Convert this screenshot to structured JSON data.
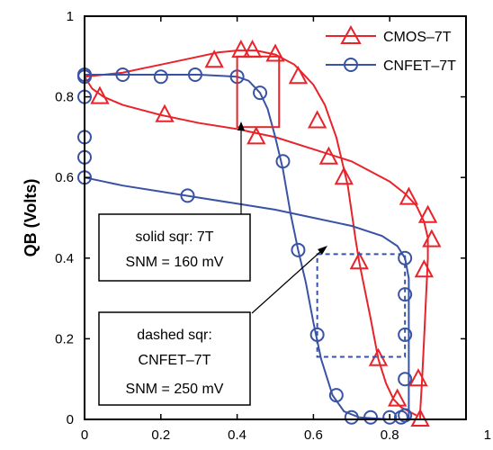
{
  "chart_data": {
    "type": "line",
    "title": "",
    "xlabel": "",
    "ylabel": "QB (Volts)",
    "xlim": [
      0,
      1
    ],
    "ylim": [
      0,
      1
    ],
    "x_ticks": [
      "0",
      "0.2",
      "0.4",
      "0.6",
      "0.8",
      "1"
    ],
    "y_ticks": [
      "0",
      "0.2",
      "0.4",
      "0.6",
      "0.8",
      "1"
    ],
    "grid": false,
    "legend_position": "top-right",
    "series": [
      {
        "name": "CMOS–7T",
        "color": "#e8232a",
        "marker": "triangle",
        "curves": [
          {
            "line": [
              [
                0,
                0.85
              ],
              [
                0.05,
                0.855
              ],
              [
                0.1,
                0.86
              ],
              [
                0.15,
                0.87
              ],
              [
                0.2,
                0.88
              ],
              [
                0.25,
                0.89
              ],
              [
                0.3,
                0.9
              ],
              [
                0.35,
                0.91
              ],
              [
                0.4,
                0.915
              ],
              [
                0.45,
                0.915
              ],
              [
                0.5,
                0.905
              ],
              [
                0.55,
                0.88
              ],
              [
                0.6,
                0.83
              ],
              [
                0.63,
                0.78
              ],
              [
                0.66,
                0.7
              ],
              [
                0.69,
                0.58
              ],
              [
                0.71,
                0.45
              ],
              [
                0.72,
                0.39
              ],
              [
                0.75,
                0.25
              ],
              [
                0.77,
                0.15
              ],
              [
                0.79,
                0.09
              ],
              [
                0.81,
                0.05
              ],
              [
                0.83,
                0.03
              ],
              [
                0.85,
                0.02
              ],
              [
                0.87,
                0.01
              ]
            ],
            "markers": [
              [
                0.34,
                0.89
              ],
              [
                0.41,
                0.915
              ],
              [
                0.44,
                0.915
              ],
              [
                0.5,
                0.905
              ],
              [
                0.56,
                0.85
              ],
              [
                0.61,
                0.74
              ],
              [
                0.68,
                0.6
              ],
              [
                0.72,
                0.39
              ],
              [
                0.77,
                0.15
              ],
              [
                0.82,
                0.05
              ]
            ]
          },
          {
            "line": [
              [
                0,
                0.85
              ],
              [
                0.02,
                0.82
              ],
              [
                0.05,
                0.8
              ],
              [
                0.1,
                0.78
              ],
              [
                0.2,
                0.755
              ],
              [
                0.3,
                0.735
              ],
              [
                0.4,
                0.72
              ],
              [
                0.5,
                0.7
              ],
              [
                0.6,
                0.67
              ],
              [
                0.7,
                0.64
              ],
              [
                0.8,
                0.59
              ],
              [
                0.84,
                0.56
              ],
              [
                0.87,
                0.53
              ],
              [
                0.89,
                0.49
              ],
              [
                0.9,
                0.45
              ],
              [
                0.9,
                0.4
              ],
              [
                0.895,
                0.3
              ],
              [
                0.89,
                0.2
              ],
              [
                0.885,
                0.1
              ],
              [
                0.88,
                0.02
              ],
              [
                0.88,
                0.0
              ]
            ],
            "markers": [
              [
                0.04,
                0.8
              ],
              [
                0.21,
                0.755
              ],
              [
                0.45,
                0.7
              ],
              [
                0.64,
                0.65
              ],
              [
                0.85,
                0.55
              ],
              [
                0.9,
                0.505
              ],
              [
                0.91,
                0.445
              ],
              [
                0.89,
                0.37
              ],
              [
                0.875,
                0.1
              ],
              [
                0.88,
                0.0
              ]
            ]
          }
        ]
      },
      {
        "name": "CNFET–7T",
        "color": "#3953a4",
        "marker": "circle",
        "curves": [
          {
            "line": [
              [
                0,
                0.855
              ],
              [
                0.1,
                0.855
              ],
              [
                0.2,
                0.855
              ],
              [
                0.3,
                0.855
              ],
              [
                0.4,
                0.85
              ],
              [
                0.43,
                0.84
              ],
              [
                0.46,
                0.81
              ],
              [
                0.48,
                0.77
              ],
              [
                0.5,
                0.7
              ],
              [
                0.52,
                0.62
              ],
              [
                0.54,
                0.51
              ],
              [
                0.56,
                0.42
              ],
              [
                0.58,
                0.34
              ],
              [
                0.6,
                0.24
              ],
              [
                0.62,
                0.15
              ],
              [
                0.65,
                0.06
              ],
              [
                0.68,
                0.02
              ],
              [
                0.72,
                0.005
              ],
              [
                0.8,
                0.0
              ],
              [
                0.85,
                0.0
              ]
            ],
            "markers": [
              [
                0,
                0.855
              ],
              [
                0.1,
                0.855
              ],
              [
                0.2,
                0.85
              ],
              [
                0.29,
                0.855
              ],
              [
                0.4,
                0.85
              ],
              [
                0.46,
                0.81
              ],
              [
                0.52,
                0.64
              ],
              [
                0.56,
                0.42
              ],
              [
                0.61,
                0.21
              ],
              [
                0.66,
                0.06
              ],
              [
                0.7,
                0.005
              ],
              [
                0.75,
                0.005
              ],
              [
                0.8,
                0.005
              ],
              [
                0.83,
                0.005
              ]
            ]
          },
          {
            "line": [
              [
                0,
                0.855
              ],
              [
                0,
                0.6
              ],
              [
                0.05,
                0.59
              ],
              [
                0.1,
                0.58
              ],
              [
                0.2,
                0.565
              ],
              [
                0.3,
                0.55
              ],
              [
                0.4,
                0.535
              ],
              [
                0.5,
                0.52
              ],
              [
                0.6,
                0.5
              ],
              [
                0.7,
                0.48
              ],
              [
                0.78,
                0.455
              ],
              [
                0.82,
                0.43
              ],
              [
                0.84,
                0.4
              ],
              [
                0.85,
                0.35
              ],
              [
                0.85,
                0.3
              ],
              [
                0.85,
                0.2
              ],
              [
                0.85,
                0.1
              ],
              [
                0.85,
                0.0
              ]
            ],
            "markers": [
              [
                0,
                0.85
              ],
              [
                0,
                0.8
              ],
              [
                0,
                0.7
              ],
              [
                0,
                0.65
              ],
              [
                0,
                0.6
              ],
              [
                0.27,
                0.555
              ],
              [
                0.84,
                0.4
              ],
              [
                0.84,
                0.31
              ],
              [
                0.84,
                0.21
              ],
              [
                0.84,
                0.1
              ],
              [
                0.84,
                0.01
              ]
            ]
          }
        ]
      }
    ],
    "annotations": {
      "solid_box": {
        "lines": [
          "solid sqr: 7T",
          "SNM = 160 mV"
        ],
        "square": [
          [
            0.4,
            0.725
          ],
          [
            0.51,
            0.9
          ]
        ]
      },
      "dashed_box": {
        "lines": [
          "dashed sqr:",
          "CNFET–7T",
          "SNM = 250 mV"
        ],
        "square": [
          [
            0.61,
            0.155
          ],
          [
            0.84,
            0.41
          ]
        ]
      }
    }
  }
}
